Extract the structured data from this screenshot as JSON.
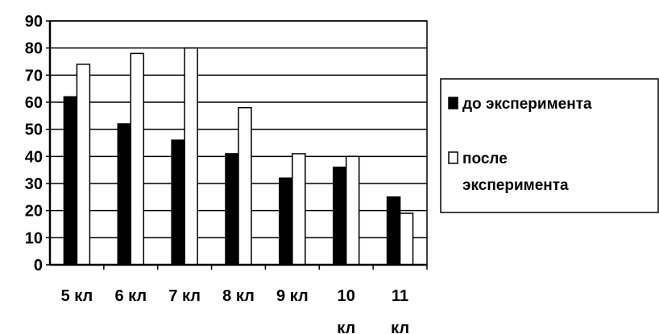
{
  "chart_data": {
    "type": "bar",
    "title": "",
    "xlabel": "",
    "ylabel": "",
    "ylim": [
      0,
      90
    ],
    "yticks": [
      "0",
      "10",
      "20",
      "30",
      "40",
      "50",
      "60",
      "70",
      "80",
      "90"
    ],
    "grid": true,
    "legend_position": "right",
    "categories": [
      [
        "5 кл"
      ],
      [
        "6 кл"
      ],
      [
        "7 кл"
      ],
      [
        "8 кл"
      ],
      [
        "9 кл"
      ],
      [
        "10",
        "кл"
      ],
      [
        "11",
        "кл"
      ]
    ],
    "series": [
      {
        "name": "до эксперимента",
        "name_lines": [
          "до эксперимента"
        ],
        "color": "#000000",
        "values": [
          62,
          52,
          46,
          41,
          32,
          36,
          25
        ]
      },
      {
        "name": "после эксперимента",
        "name_lines": [
          "после",
          "эксперимента"
        ],
        "color": "#ffffff",
        "values": [
          74,
          78,
          80,
          58,
          41,
          40,
          19
        ]
      }
    ]
  }
}
